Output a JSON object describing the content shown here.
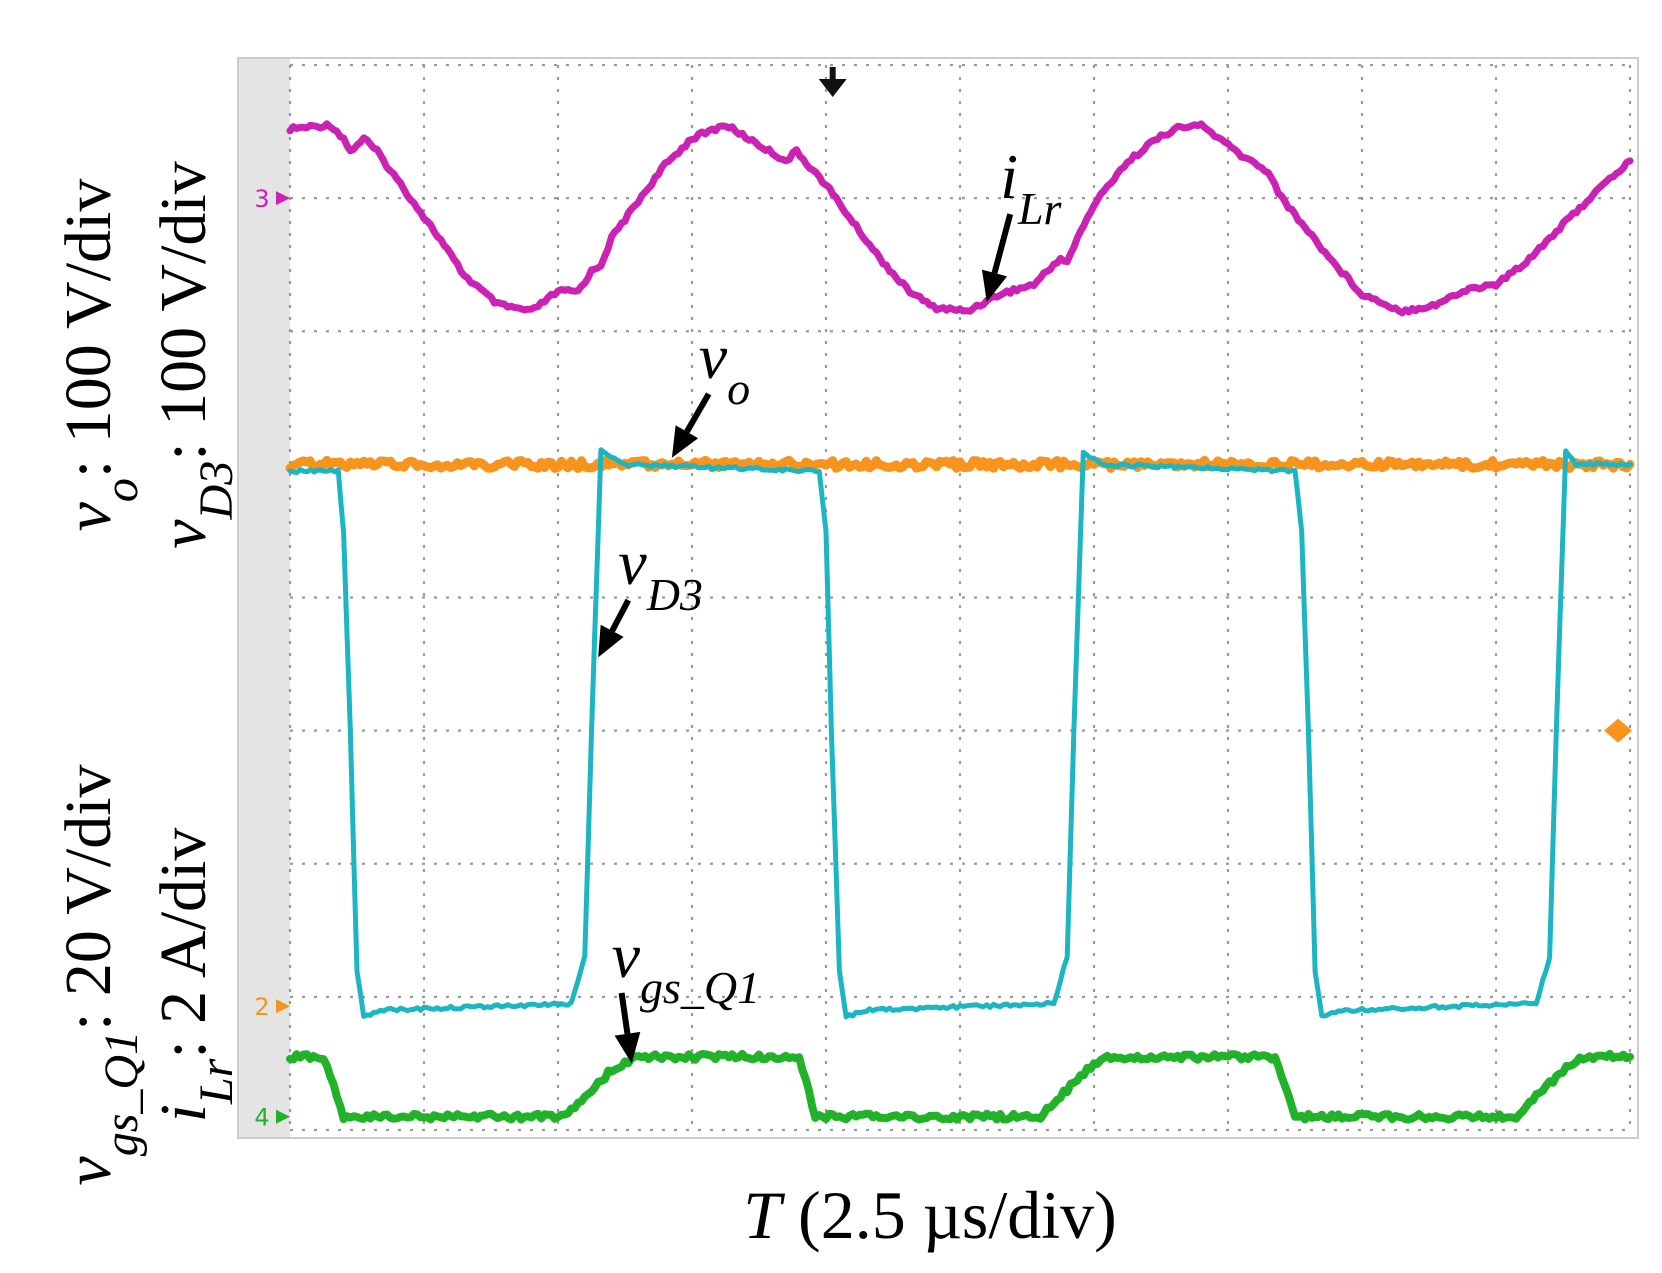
{
  "chart_data": {
    "type": "line",
    "title": "",
    "xlabel": {
      "var": "T",
      "unit": "(2.5 µs/div)"
    },
    "ylabels": [
      {
        "parts": [
          [
            "v",
            "it"
          ],
          [
            "o",
            "sub"
          ],
          [
            ": 100 V/div",
            ""
          ]
        ]
      },
      {
        "parts": [
          [
            "v",
            "it"
          ],
          [
            "D3",
            "sub"
          ],
          [
            ": 100 V/div",
            ""
          ]
        ]
      },
      {
        "parts": [
          [
            "v",
            "it"
          ],
          [
            "gs_Q1",
            "sub"
          ],
          [
            ": 20 V/div",
            ""
          ]
        ]
      },
      {
        "parts": [
          [
            "i",
            "it"
          ],
          [
            "Lr",
            "sub"
          ],
          [
            ": 2 A/div",
            ""
          ]
        ]
      }
    ],
    "grid": {
      "x_divisions": 10,
      "y_divisions": 8
    },
    "x_range_div": [
      0,
      10
    ],
    "y_range_div": [
      0,
      8
    ],
    "series": [
      {
        "name": "iLr",
        "color": "#cc22b4",
        "scale": "2 A/div",
        "x": [
          0,
          0.3,
          0.4,
          0.45,
          0.55,
          0.65,
          0.72,
          0.9,
          1.1,
          1.3,
          1.55,
          1.8,
          2.0,
          2.15,
          2.25,
          2.32,
          2.4,
          2.6,
          2.8,
          3.0,
          3.25,
          3.5,
          3.7,
          3.78,
          4.0,
          4.2,
          4.4,
          4.6,
          4.8,
          5.05,
          5.3,
          5.55,
          5.75,
          5.8,
          5.9,
          6.0,
          6.2,
          6.4,
          6.6,
          6.8,
          7.1,
          7.3,
          7.4,
          7.6,
          7.8,
          8.0,
          8.3,
          8.55,
          8.8,
          9.0,
          9.2,
          9.3,
          9.5,
          9.75,
          10.0
        ],
        "y": [
          7.52,
          7.55,
          7.45,
          7.35,
          7.45,
          7.35,
          7.25,
          7.0,
          6.72,
          6.42,
          6.2,
          6.15,
          6.3,
          6.3,
          6.45,
          6.5,
          6.7,
          6.98,
          7.25,
          7.45,
          7.55,
          7.4,
          7.28,
          7.35,
          7.1,
          6.82,
          6.55,
          6.32,
          6.18,
          6.15,
          6.28,
          6.35,
          6.55,
          6.52,
          6.75,
          6.95,
          7.22,
          7.4,
          7.52,
          7.55,
          7.32,
          7.2,
          7.0,
          6.75,
          6.5,
          6.28,
          6.15,
          6.2,
          6.32,
          6.35,
          6.5,
          6.6,
          6.8,
          7.05,
          7.28
        ]
      },
      {
        "name": "vo",
        "color": "#f7941d",
        "scale": "100 V/div",
        "x": [
          0,
          10
        ],
        "y": [
          5.0,
          5.0
        ]
      },
      {
        "name": "vD3",
        "color": "#1cb5c2",
        "scale": "100 V/div",
        "x": [
          0,
          0.36,
          0.4,
          0.45,
          0.5,
          0.55,
          0.7,
          2.1,
          2.2,
          2.25,
          2.32,
          2.5,
          3.95,
          4.0,
          4.04,
          4.1,
          4.15,
          4.3,
          5.7,
          5.8,
          5.85,
          5.92,
          6.05,
          7.5,
          7.55,
          7.6,
          7.65,
          7.7,
          7.85,
          9.3,
          9.4,
          9.45,
          9.52,
          9.6,
          10.0
        ],
        "y": [
          4.95,
          4.95,
          4.5,
          3.0,
          1.2,
          0.85,
          0.9,
          0.95,
          1.3,
          3.0,
          5.1,
          5.0,
          4.95,
          4.5,
          3.0,
          1.2,
          0.85,
          0.9,
          0.95,
          1.3,
          3.0,
          5.1,
          5.0,
          4.95,
          4.5,
          3.0,
          1.2,
          0.85,
          0.9,
          0.95,
          1.3,
          3.0,
          5.1,
          5.0,
          5.0
        ]
      },
      {
        "name": "vgs_Q1",
        "color": "#22b22a",
        "scale": "20 V/div",
        "x": [
          0,
          0.25,
          0.4,
          0.5,
          2.05,
          2.2,
          2.4,
          2.6,
          3.8,
          3.92,
          4.0,
          5.6,
          5.8,
          6.0,
          6.1,
          7.35,
          7.5,
          7.6,
          9.15,
          9.3,
          9.5,
          9.65,
          10.0
        ],
        "y": [
          0.55,
          0.55,
          0.1,
          0.1,
          0.1,
          0.25,
          0.45,
          0.55,
          0.55,
          0.1,
          0.1,
          0.1,
          0.3,
          0.5,
          0.55,
          0.55,
          0.1,
          0.1,
          0.1,
          0.25,
          0.45,
          0.55,
          0.55
        ]
      }
    ],
    "annotations": [
      {
        "parts": [
          [
            "i",
            "it"
          ],
          [
            "Lr",
            "sub"
          ]
        ],
        "target_div": [
          5.2,
          6.22
        ],
        "text_div": [
          5.3,
          7.0
        ]
      },
      {
        "parts": [
          [
            "v",
            "it"
          ],
          [
            "o",
            "sub"
          ]
        ],
        "target_div": [
          2.85,
          5.05
        ],
        "text_div": [
          3.05,
          5.65
        ]
      },
      {
        "parts": [
          [
            "v",
            "it"
          ],
          [
            "D3",
            "sub"
          ]
        ],
        "target_div": [
          2.3,
          3.55
        ],
        "text_div": [
          2.45,
          4.1
        ]
      },
      {
        "parts": [
          [
            "v",
            "it"
          ],
          [
            "gs_Q1",
            "sub"
          ]
        ],
        "target_div": [
          2.55,
          0.5
        ],
        "text_div": [
          2.4,
          1.15
        ]
      }
    ],
    "channel_markers": [
      {
        "label": "3",
        "color": "#cc22b4",
        "y_div": 7.0,
        "side": "left"
      },
      {
        "label": "2",
        "color": "#f7941d",
        "y_div": 0.93,
        "side": "left"
      },
      {
        "label": "4",
        "color": "#22b22a",
        "y_div": 0.1,
        "side": "left"
      },
      {
        "label": "",
        "color": "#f7941d",
        "y_div": 3.0,
        "side": "right"
      }
    ],
    "trigger_marker_x_div": 4.05
  }
}
